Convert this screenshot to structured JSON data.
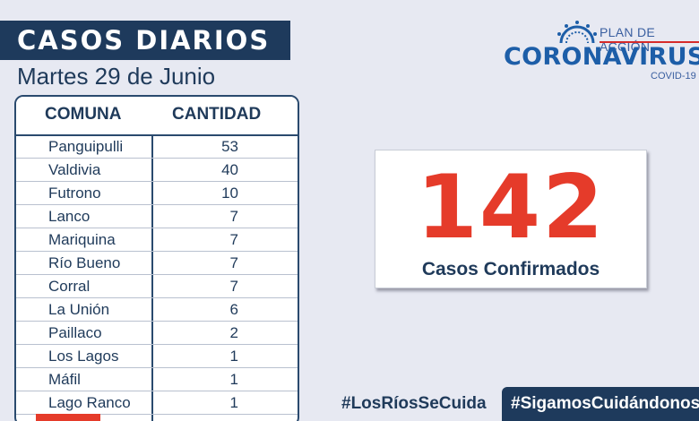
{
  "header": {
    "title": "CASOS DIARIOS",
    "date": "Martes 29 de Junio"
  },
  "logo": {
    "plan": "PLAN DE ACCIÓN",
    "name": "CORONAVIRUS",
    "sub": "COVID-19"
  },
  "table": {
    "headers": [
      "COMUNA",
      "CANTIDAD"
    ],
    "rows": [
      {
        "comuna": "Panguipulli",
        "cantidad": "53"
      },
      {
        "comuna": "Valdivia",
        "cantidad": "40"
      },
      {
        "comuna": "Futrono",
        "cantidad": "10"
      },
      {
        "comuna": "Lanco",
        "cantidad": "7"
      },
      {
        "comuna": "Mariquina",
        "cantidad": "7"
      },
      {
        "comuna": "Río Bueno",
        "cantidad": "7"
      },
      {
        "comuna": "Corral",
        "cantidad": "7"
      },
      {
        "comuna": "La Unión",
        "cantidad": "6"
      },
      {
        "comuna": "Paillaco",
        "cantidad": "2"
      },
      {
        "comuna": "Los Lagos",
        "cantidad": "1"
      },
      {
        "comuna": "Máfil",
        "cantidad": "1"
      },
      {
        "comuna": "Lago Ranco",
        "cantidad": "1"
      }
    ]
  },
  "total": {
    "value": "142",
    "label": "Casos Confirmados"
  },
  "hashtags": {
    "left": "#LosRíosSeCuida",
    "right": "#SigamosCuidándonos"
  },
  "colors": {
    "navy": "#1e3a5c",
    "red": "#e53b2a",
    "blue": "#1d5ea8",
    "background": "#e7e9f2"
  }
}
